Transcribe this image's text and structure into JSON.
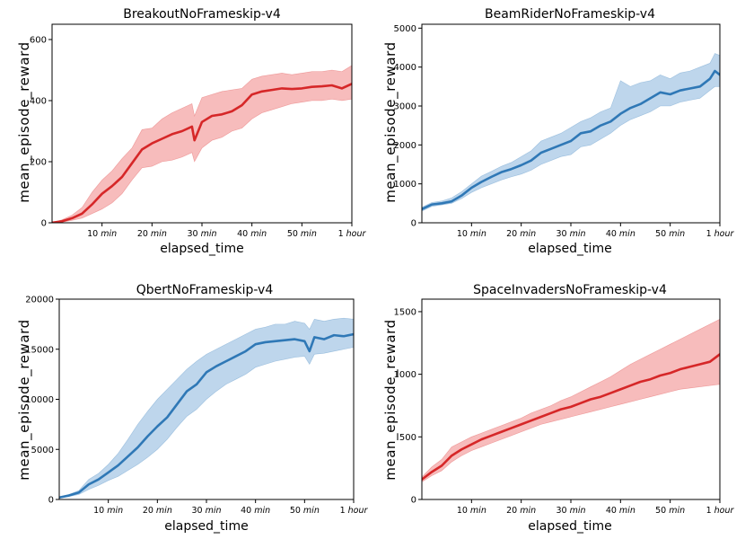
{
  "chart_data": [
    {
      "type": "line",
      "title": "BreakoutNoFrameskip-v4",
      "xlabel": "elapsed_time",
      "ylabel": "mean_episode_reward",
      "xlim": [
        0,
        60
      ],
      "ylim": [
        0,
        650
      ],
      "yticks": [
        0,
        200,
        400,
        600
      ],
      "xticks": [
        {
          "value": 10,
          "num": "10",
          "unit": "min"
        },
        {
          "value": 20,
          "num": "20",
          "unit": "min"
        },
        {
          "value": 30,
          "num": "30",
          "unit": "min"
        },
        {
          "value": 40,
          "num": "40",
          "unit": "min"
        },
        {
          "value": 50,
          "num": "50",
          "unit": "min"
        },
        {
          "value": 60,
          "num": "1",
          "unit": "hour"
        }
      ],
      "grid": false,
      "line_color": "#d62728",
      "band_color": "#f4a6a6",
      "x": [
        0,
        2,
        4,
        6,
        8,
        10,
        12,
        14,
        16,
        18,
        20,
        22,
        24,
        26,
        28,
        28.5,
        30,
        32,
        34,
        36,
        38,
        40,
        42,
        44,
        46,
        48,
        50,
        52,
        54,
        56,
        58,
        60
      ],
      "y": [
        0,
        5,
        15,
        30,
        60,
        95,
        120,
        150,
        195,
        240,
        260,
        275,
        290,
        300,
        315,
        270,
        330,
        350,
        355,
        365,
        385,
        420,
        430,
        435,
        440,
        438,
        440,
        445,
        447,
        450,
        440,
        455
      ],
      "y_low": [
        0,
        2,
        8,
        15,
        30,
        45,
        65,
        95,
        140,
        180,
        185,
        200,
        205,
        215,
        230,
        200,
        245,
        270,
        280,
        300,
        310,
        340,
        360,
        370,
        380,
        390,
        395,
        400,
        400,
        405,
        400,
        405
      ],
      "y_high": [
        0,
        10,
        25,
        50,
        100,
        140,
        170,
        210,
        245,
        305,
        310,
        340,
        360,
        375,
        390,
        350,
        410,
        420,
        430,
        435,
        440,
        470,
        480,
        485,
        490,
        485,
        490,
        495,
        495,
        500,
        495,
        515
      ]
    },
    {
      "type": "line",
      "title": "BeamRiderNoFrameskip-v4",
      "xlabel": "elapsed_time",
      "ylabel": "mean_episode_reward",
      "xlim": [
        0,
        60
      ],
      "ylim": [
        0,
        5100
      ],
      "yticks": [
        0,
        1000,
        2000,
        3000,
        4000,
        5000
      ],
      "xticks": [
        {
          "value": 10,
          "num": "10",
          "unit": "min"
        },
        {
          "value": 20,
          "num": "20",
          "unit": "min"
        },
        {
          "value": 30,
          "num": "30",
          "unit": "min"
        },
        {
          "value": 40,
          "num": "40",
          "unit": "min"
        },
        {
          "value": 50,
          "num": "50",
          "unit": "min"
        },
        {
          "value": 60,
          "num": "1",
          "unit": "hour"
        }
      ],
      "grid": false,
      "line_color": "#2f78b6",
      "band_color": "#a8c8e6",
      "x": [
        0,
        2,
        4,
        6,
        8,
        10,
        12,
        14,
        16,
        18,
        20,
        22,
        24,
        26,
        28,
        30,
        32,
        34,
        36,
        38,
        40,
        42,
        44,
        46,
        48,
        50,
        52,
        54,
        56,
        58,
        59,
        60
      ],
      "y": [
        350,
        470,
        500,
        550,
        700,
        900,
        1050,
        1180,
        1300,
        1380,
        1480,
        1600,
        1800,
        1900,
        2000,
        2100,
        2300,
        2350,
        2500,
        2600,
        2800,
        2950,
        3050,
        3200,
        3350,
        3300,
        3400,
        3450,
        3500,
        3700,
        3900,
        3800
      ],
      "y_low": [
        300,
        420,
        460,
        500,
        620,
        780,
        900,
        1000,
        1100,
        1180,
        1250,
        1350,
        1500,
        1600,
        1700,
        1750,
        1950,
        2000,
        2150,
        2300,
        2500,
        2650,
        2750,
        2850,
        3000,
        3000,
        3100,
        3150,
        3200,
        3400,
        3500,
        3500
      ],
      "y_high": [
        400,
        520,
        560,
        640,
        800,
        1000,
        1200,
        1320,
        1450,
        1550,
        1700,
        1850,
        2100,
        2200,
        2300,
        2450,
        2600,
        2700,
        2850,
        2950,
        3650,
        3500,
        3600,
        3650,
        3800,
        3700,
        3850,
        3900,
        4000,
        4100,
        4350,
        4300
      ]
    },
    {
      "type": "line",
      "title": "QbertNoFrameskip-v4",
      "xlabel": "elapsed_time",
      "ylabel": "mean_episode_reward",
      "xlim": [
        0,
        60
      ],
      "ylim": [
        0,
        20000
      ],
      "yticks": [
        0,
        5000,
        10000,
        15000,
        20000
      ],
      "xticks": [
        {
          "value": 10,
          "num": "10",
          "unit": "min"
        },
        {
          "value": 20,
          "num": "20",
          "unit": "min"
        },
        {
          "value": 30,
          "num": "30",
          "unit": "min"
        },
        {
          "value": 40,
          "num": "40",
          "unit": "min"
        },
        {
          "value": 50,
          "num": "50",
          "unit": "min"
        },
        {
          "value": 60,
          "num": "1",
          "unit": "hour"
        }
      ],
      "grid": false,
      "line_color": "#2f78b6",
      "band_color": "#a8c8e6",
      "x": [
        0,
        2,
        4,
        6,
        8,
        10,
        12,
        14,
        16,
        18,
        20,
        22,
        24,
        26,
        28,
        30,
        32,
        34,
        36,
        38,
        40,
        42,
        44,
        46,
        48,
        50,
        51,
        52,
        54,
        56,
        58,
        60
      ],
      "y": [
        200,
        400,
        700,
        1500,
        2000,
        2700,
        3400,
        4300,
        5200,
        6300,
        7300,
        8200,
        9500,
        10800,
        11500,
        12700,
        13300,
        13800,
        14300,
        14800,
        15500,
        15700,
        15800,
        15900,
        16000,
        15800,
        14800,
        16200,
        16000,
        16400,
        16300,
        16500
      ],
      "y_low": [
        150,
        300,
        500,
        1000,
        1400,
        1900,
        2300,
        2900,
        3500,
        4200,
        5000,
        6000,
        7200,
        8300,
        9000,
        10000,
        10800,
        11500,
        12000,
        12500,
        13200,
        13500,
        13800,
        14000,
        14200,
        14300,
        13500,
        14500,
        14600,
        14800,
        15000,
        15200
      ],
      "y_high": [
        250,
        500,
        900,
        2000,
        2600,
        3500,
        4600,
        6000,
        7500,
        8800,
        10000,
        11000,
        12000,
        13000,
        13800,
        14500,
        15000,
        15500,
        16000,
        16500,
        17000,
        17200,
        17500,
        17500,
        17800,
        17600,
        17000,
        18000,
        17800,
        18000,
        18100,
        18000
      ]
    },
    {
      "type": "line",
      "title": "SpaceInvadersNoFrameskip-v4",
      "xlabel": "elapsed_time",
      "ylabel": "mean_episode_reward",
      "xlim": [
        0,
        60
      ],
      "ylim": [
        0,
        1600
      ],
      "yticks": [
        0,
        500,
        1000,
        1500
      ],
      "xticks": [
        {
          "value": 10,
          "num": "10",
          "unit": "min"
        },
        {
          "value": 20,
          "num": "20",
          "unit": "min"
        },
        {
          "value": 30,
          "num": "30",
          "unit": "min"
        },
        {
          "value": 40,
          "num": "40",
          "unit": "min"
        },
        {
          "value": 50,
          "num": "50",
          "unit": "min"
        },
        {
          "value": 60,
          "num": "1",
          "unit": "hour"
        }
      ],
      "grid": false,
      "line_color": "#d62728",
      "band_color": "#f4a6a6",
      "x": [
        0,
        2,
        4,
        6,
        8,
        10,
        12,
        14,
        16,
        18,
        20,
        22,
        24,
        26,
        28,
        30,
        32,
        34,
        36,
        38,
        40,
        42,
        44,
        46,
        48,
        50,
        52,
        54,
        56,
        58,
        60
      ],
      "y": [
        160,
        220,
        270,
        350,
        400,
        440,
        480,
        510,
        540,
        570,
        600,
        630,
        660,
        690,
        720,
        740,
        770,
        800,
        820,
        850,
        880,
        910,
        940,
        960,
        990,
        1010,
        1040,
        1060,
        1080,
        1100,
        1160
      ],
      "y_low": [
        140,
        190,
        230,
        300,
        350,
        390,
        420,
        450,
        480,
        510,
        540,
        570,
        600,
        620,
        640,
        660,
        680,
        700,
        720,
        740,
        760,
        780,
        800,
        820,
        840,
        860,
        880,
        890,
        900,
        910,
        920
      ],
      "y_high": [
        180,
        260,
        320,
        420,
        460,
        500,
        530,
        560,
        590,
        620,
        650,
        690,
        720,
        750,
        790,
        820,
        860,
        900,
        940,
        980,
        1030,
        1080,
        1120,
        1160,
        1200,
        1240,
        1280,
        1320,
        1360,
        1400,
        1440
      ]
    }
  ]
}
